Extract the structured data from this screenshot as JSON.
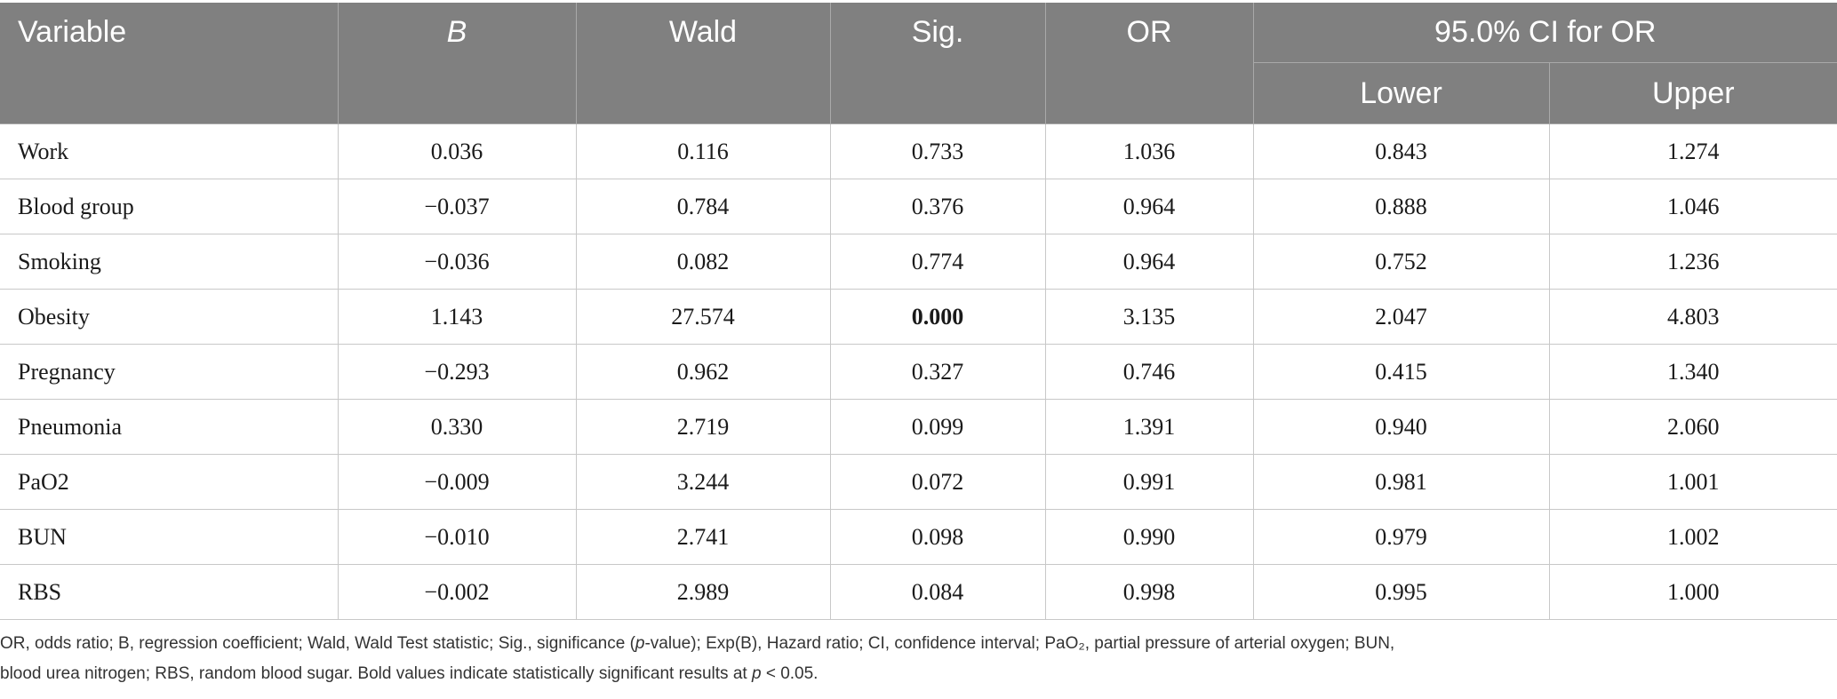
{
  "table": {
    "headers": {
      "variable": "Variable",
      "b": "B",
      "wald": "Wald",
      "sig": "Sig.",
      "or": "OR",
      "ci_group": "95.0% CI for OR",
      "lower": "Lower",
      "upper": "Upper"
    },
    "rows": [
      {
        "variable": "Work",
        "b": "0.036",
        "wald": "0.116",
        "sig": "0.733",
        "or": "1.036",
        "lower": "0.843",
        "upper": "1.274",
        "sig_bold": false
      },
      {
        "variable": "Blood group",
        "b": "−0.037",
        "wald": "0.784",
        "sig": "0.376",
        "or": "0.964",
        "lower": "0.888",
        "upper": "1.046",
        "sig_bold": false
      },
      {
        "variable": "Smoking",
        "b": "−0.036",
        "wald": "0.082",
        "sig": "0.774",
        "or": "0.964",
        "lower": "0.752",
        "upper": "1.236",
        "sig_bold": false
      },
      {
        "variable": "Obesity",
        "b": "1.143",
        "wald": "27.574",
        "sig": "0.000",
        "or": "3.135",
        "lower": "2.047",
        "upper": "4.803",
        "sig_bold": true
      },
      {
        "variable": "Pregnancy",
        "b": "−0.293",
        "wald": "0.962",
        "sig": "0.327",
        "or": "0.746",
        "lower": "0.415",
        "upper": "1.340",
        "sig_bold": false
      },
      {
        "variable": "Pneumonia",
        "b": "0.330",
        "wald": "2.719",
        "sig": "0.099",
        "or": "1.391",
        "lower": "0.940",
        "upper": "2.060",
        "sig_bold": false
      },
      {
        "variable": "PaO2",
        "b": "−0.009",
        "wald": "3.244",
        "sig": "0.072",
        "or": "0.991",
        "lower": "0.981",
        "upper": "1.001",
        "sig_bold": false
      },
      {
        "variable": "BUN",
        "b": "−0.010",
        "wald": "2.741",
        "sig": "0.098",
        "or": "0.990",
        "lower": "0.979",
        "upper": "1.002",
        "sig_bold": false
      },
      {
        "variable": "RBS",
        "b": "−0.002",
        "wald": "2.989",
        "sig": "0.084",
        "or": "0.998",
        "lower": "0.995",
        "upper": "1.000",
        "sig_bold": false
      }
    ]
  },
  "footnote": {
    "line1_pre": "OR, odds ratio; B, regression coefficient; Wald, Wald Test statistic; Sig., significance (",
    "line1_p": "p",
    "line1_post": "-value); Exp(B), Hazard ratio; CI, confidence interval; PaO₂, partial pressure of arterial oxygen; BUN,",
    "line2_pre": "blood urea nitrogen; RBS, random blood sugar. Bold values indicate statistically significant results at ",
    "line2_p": "p",
    "line2_post": " < 0.05."
  },
  "colors": {
    "header_bg": "#808080",
    "header_text": "#ffffff"
  }
}
